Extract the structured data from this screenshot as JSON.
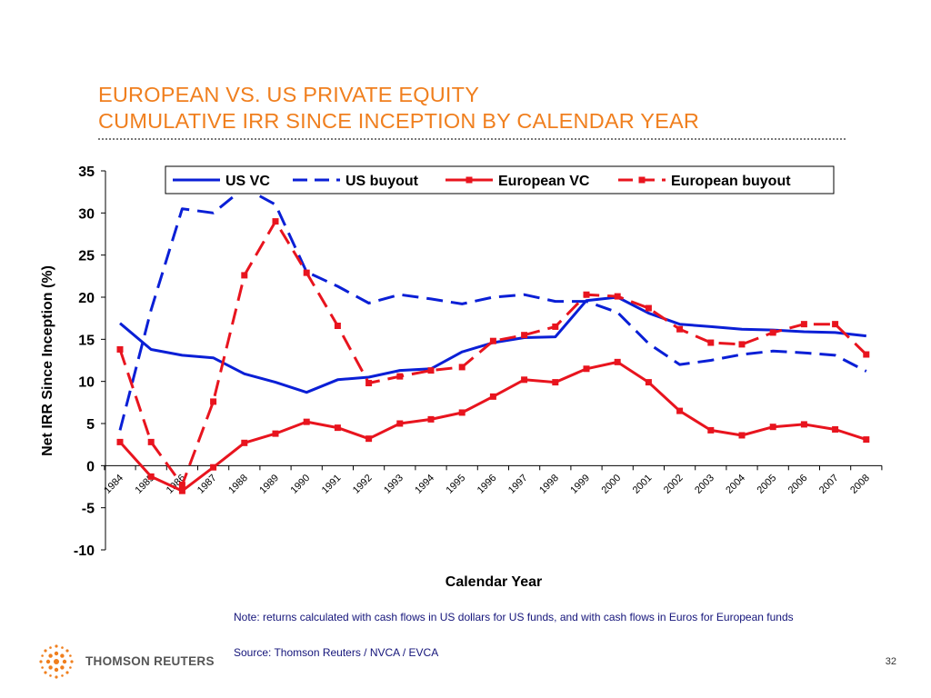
{
  "slide": {
    "title_line1": "EUROPEAN VS. US PRIVATE EQUITY",
    "title_line2": "CUMULATIVE IRR SINCE INCEPTION BY CALENDAR YEAR",
    "note": "Note: returns calculated with cash flows in US dollars for US funds, and with cash flows in Euros for European funds",
    "source": "Source: Thomson Reuters / NVCA / EVCA",
    "page_number": "32",
    "logo_text": "THOMSON REUTERS",
    "title_color": "#f07f1e",
    "text_color": "#14147a"
  },
  "chart_data": {
    "type": "line",
    "title": "",
    "xlabel": "Calendar Year",
    "ylabel": "Net IRR Since Inception (%)",
    "ylim": [
      -10,
      35
    ],
    "yticks": [
      35,
      30,
      25,
      20,
      15,
      10,
      5,
      0,
      -5,
      -10
    ],
    "grid": false,
    "legend_position": "top",
    "categories": [
      "1984",
      "1985",
      "1986",
      "1987",
      "1988",
      "1989",
      "1990",
      "1991",
      "1992",
      "1993",
      "1994",
      "1995",
      "1996",
      "1997",
      "1998",
      "1999",
      "2000",
      "2001",
      "2002",
      "2003",
      "2004",
      "2005",
      "2006",
      "2007",
      "2008"
    ],
    "series": [
      {
        "name": "US VC",
        "color": "#0a1fd6",
        "style": "solid",
        "marker": "none",
        "values": [
          16.9,
          13.8,
          13.1,
          12.8,
          10.9,
          9.9,
          8.7,
          10.2,
          10.5,
          11.3,
          11.5,
          13.5,
          14.6,
          15.2,
          15.3,
          19.6,
          20.0,
          18.1,
          16.8,
          16.5,
          16.2,
          16.1,
          15.9,
          15.8,
          15.4
        ]
      },
      {
        "name": "US buyout",
        "color": "#0a1fd6",
        "style": "dashed",
        "marker": "none",
        "values": [
          4.2,
          18.5,
          30.5,
          30.0,
          33.0,
          31.0,
          23.0,
          21.3,
          19.3,
          20.3,
          19.8,
          19.2,
          20.0,
          20.3,
          19.5,
          19.5,
          18.2,
          14.5,
          12.0,
          12.5,
          13.2,
          13.6,
          13.4,
          13.1,
          11.2
        ]
      },
      {
        "name": "European VC",
        "color": "#e8141e",
        "style": "solid",
        "marker": "square",
        "values": [
          2.8,
          -1.3,
          -3.0,
          -0.2,
          2.7,
          3.8,
          5.2,
          4.5,
          3.2,
          5.0,
          5.5,
          6.3,
          8.2,
          10.2,
          9.9,
          11.5,
          12.3,
          9.9,
          6.5,
          4.2,
          3.6,
          4.6,
          4.9,
          4.3,
          3.1
        ]
      },
      {
        "name": "European buyout",
        "color": "#e8141e",
        "style": "dashed",
        "marker": "square",
        "values": [
          13.8,
          2.8,
          -2.3,
          7.6,
          22.6,
          29.0,
          22.9,
          16.6,
          9.8,
          10.6,
          11.3,
          11.7,
          14.8,
          15.5,
          16.5,
          20.3,
          20.1,
          18.7,
          16.2,
          14.6,
          14.4,
          15.8,
          16.8,
          16.8,
          13.2
        ]
      }
    ]
  }
}
